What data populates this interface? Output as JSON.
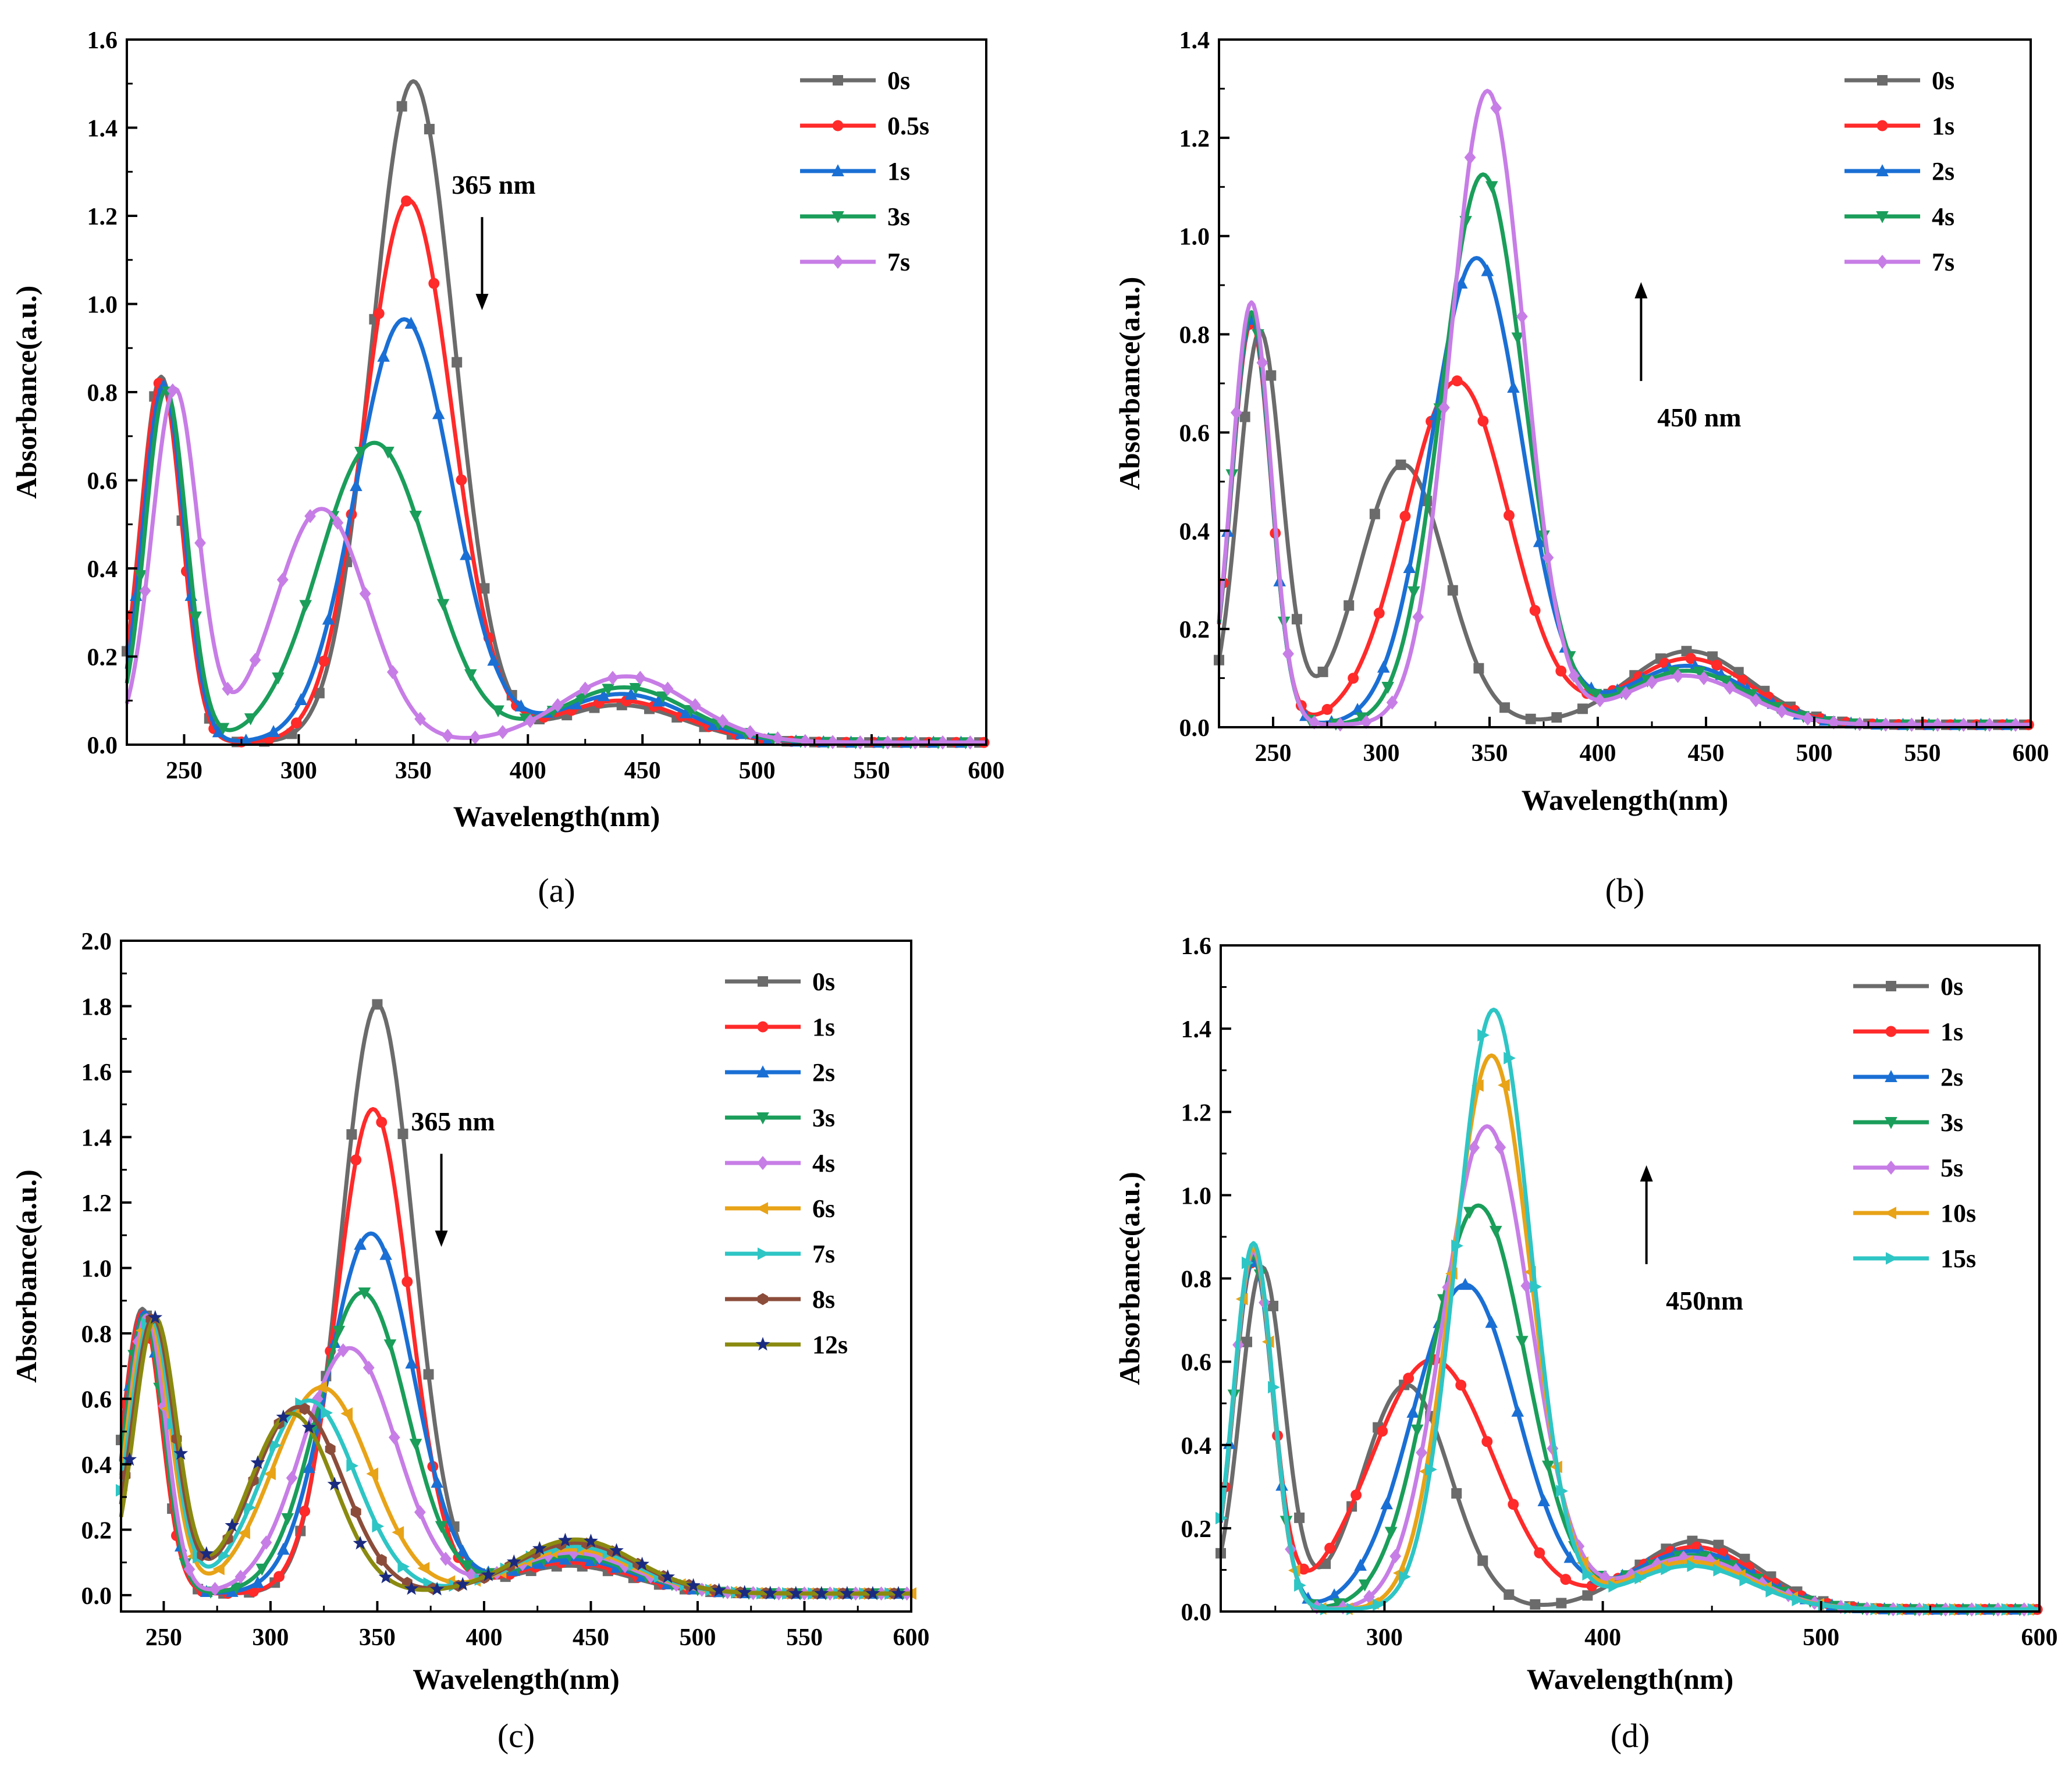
{
  "chart_data": [
    {
      "panel": "(a)",
      "type": "line",
      "xlabel": "Wavelength(nm)",
      "ylabel": "Absorbance(a.u.)",
      "xlim": [
        225,
        600
      ],
      "ylim": [
        0,
        1.6
      ],
      "xticks": [
        250,
        300,
        350,
        400,
        450,
        500,
        550,
        600
      ],
      "yticks": [
        0.0,
        0.2,
        0.4,
        0.6,
        0.8,
        1.0,
        1.2,
        1.4,
        1.6
      ],
      "ytick_labels": [
        "0.0",
        "0.2",
        "0.4",
        "0.6",
        "0.8",
        "1.0",
        "1.2",
        "1.4",
        "1.6"
      ],
      "annotation": {
        "text": "365 nm",
        "arrow": "down",
        "x": 380,
        "y": 1.25
      },
      "legend_position": "top-right",
      "series": [
        {
          "name": "0s",
          "color": "#6b6b6b",
          "marker": "square",
          "peaks": [
            [
              240,
              0.83,
              9
            ],
            [
              350,
              1.5,
              18
            ],
            [
              440,
              0.085,
              28
            ]
          ]
        },
        {
          "name": "0.5s",
          "color": "#ff2a2a",
          "marker": "circle",
          "peaks": [
            [
              240,
              0.82,
              9
            ],
            [
              348,
              1.23,
              19
            ],
            [
              440,
              0.095,
              28
            ]
          ]
        },
        {
          "name": "1s",
          "color": "#1a6fd4",
          "marker": "triangle-up",
          "peaks": [
            [
              241,
              0.81,
              9
            ],
            [
              346,
              0.96,
              21
            ],
            [
              441,
              0.11,
              28
            ]
          ]
        },
        {
          "name": "3s",
          "color": "#1a9e5a",
          "marker": "triangle-down",
          "peaks": [
            [
              242,
              0.8,
              9
            ],
            [
              333,
              0.68,
              24
            ],
            [
              442,
              0.125,
              28
            ]
          ]
        },
        {
          "name": "7s",
          "color": "#c77de6",
          "marker": "diamond",
          "peaks": [
            [
              246,
              0.8,
              10
            ],
            [
              310,
              0.53,
              20
            ],
            [
              443,
              0.15,
              28
            ]
          ]
        }
      ]
    },
    {
      "panel": "(b)",
      "type": "line",
      "xlabel": "Wavelength(nm)",
      "ylabel": "Absorbance(a.u.)",
      "xlim": [
        225,
        600
      ],
      "ylim": [
        0,
        1.4
      ],
      "xticks": [
        250,
        300,
        350,
        400,
        450,
        500,
        550,
        600
      ],
      "yticks": [
        0.0,
        0.2,
        0.4,
        0.6,
        0.8,
        1.0,
        1.2,
        1.4
      ],
      "ytick_labels": [
        "0.0",
        "0.2",
        "0.4",
        "0.6",
        "0.8",
        "1.0",
        "1.2",
        "1.4"
      ],
      "annotation": {
        "text": "450 nm",
        "arrow": "up",
        "x": 420,
        "y": 0.93
      },
      "legend_position": "top-right",
      "series": [
        {
          "name": "0s",
          "color": "#6b6b6b",
          "marker": "square",
          "peaks": [
            [
              244,
              0.8,
              10
            ],
            [
              310,
              0.53,
              20
            ],
            [
              442,
              0.15,
              28
            ]
          ]
        },
        {
          "name": "1s",
          "color": "#ff2a2a",
          "marker": "circle",
          "peaks": [
            [
              240,
              0.82,
              9
            ],
            [
              335,
              0.7,
              24
            ],
            [
              442,
              0.135,
              28
            ]
          ]
        },
        {
          "name": "2s",
          "color": "#1a6fd4",
          "marker": "triangle-up",
          "peaks": [
            [
              240,
              0.83,
              9
            ],
            [
              344,
              0.95,
              21
            ],
            [
              441,
              0.12,
              28
            ]
          ]
        },
        {
          "name": "4s",
          "color": "#1a9e5a",
          "marker": "triangle-down",
          "peaks": [
            [
              240,
              0.84,
              9
            ],
            [
              347,
              1.12,
              19
            ],
            [
              441,
              0.11,
              28
            ]
          ]
        },
        {
          "name": "7s",
          "color": "#c77de6",
          "marker": "diamond",
          "peaks": [
            [
              240,
              0.86,
              9
            ],
            [
              349,
              1.29,
              17
            ],
            [
              440,
              0.1,
              28
            ]
          ]
        }
      ]
    },
    {
      "panel": "(c)",
      "type": "line",
      "xlabel": "Wavelength(nm)",
      "ylabel": "Absorbance(a.u.)",
      "xlim": [
        230,
        600
      ],
      "ylim": [
        -0.05,
        2.0
      ],
      "xticks": [
        250,
        300,
        350,
        400,
        450,
        500,
        550,
        600
      ],
      "yticks": [
        0.0,
        0.2,
        0.4,
        0.6,
        0.8,
        1.0,
        1.2,
        1.4,
        1.6,
        1.8,
        2.0
      ],
      "ytick_labels": [
        "0.0",
        "0.2",
        "0.4",
        "0.6",
        "0.8",
        "1.0",
        "1.2",
        "1.4",
        "1.6",
        "1.8",
        "2.0"
      ],
      "annotation": {
        "text": "365 nm",
        "arrow": "down",
        "x": 380,
        "y": 1.42
      },
      "legend_position": "top-right",
      "series": [
        {
          "name": "0s",
          "color": "#6b6b6b",
          "marker": "square",
          "peaks": [
            [
              240,
              0.87,
              9
            ],
            [
              350,
              1.8,
              17
            ],
            [
              440,
              0.085,
              28
            ]
          ]
        },
        {
          "name": "1s",
          "color": "#ff2a2a",
          "marker": "circle",
          "peaks": [
            [
              240,
              0.86,
              9
            ],
            [
              348,
              1.48,
              17
            ],
            [
              440,
              0.095,
              28
            ]
          ]
        },
        {
          "name": "2s",
          "color": "#1a6fd4",
          "marker": "triangle-up",
          "peaks": [
            [
              241,
              0.86,
              9
            ],
            [
              347,
              1.1,
              20
            ],
            [
              441,
              0.105,
              28
            ]
          ]
        },
        {
          "name": "3s",
          "color": "#1a9e5a",
          "marker": "triangle-down",
          "peaks": [
            [
              241,
              0.85,
              9
            ],
            [
              343,
              0.92,
              21
            ],
            [
              441,
              0.115,
              28
            ]
          ]
        },
        {
          "name": "4s",
          "color": "#c77de6",
          "marker": "diamond",
          "peaks": [
            [
              242,
              0.85,
              9
            ],
            [
              337,
              0.75,
              22
            ],
            [
              441,
              0.125,
              28
            ]
          ]
        },
        {
          "name": "6s",
          "color": "#e8a317",
          "marker": "triangle-left",
          "peaks": [
            [
              243,
              0.84,
              10
            ],
            [
              324,
              0.63,
              23
            ],
            [
              442,
              0.135,
              28
            ]
          ]
        },
        {
          "name": "7s",
          "color": "#2ec5c5",
          "marker": "triangle-right",
          "peaks": [
            [
              244,
              0.84,
              10
            ],
            [
              318,
              0.59,
              22
            ],
            [
              442,
              0.145,
              28
            ]
          ]
        },
        {
          "name": "8s",
          "color": "#8b4d3a",
          "marker": "hexagon",
          "peaks": [
            [
              245,
              0.84,
              10
            ],
            [
              313,
              0.57,
              21
            ],
            [
              443,
              0.155,
              28
            ]
          ]
        },
        {
          "name": "12s",
          "color": "#8a8a10",
          "marker": "star",
          "peaks": [
            [
              246,
              0.84,
              10
            ],
            [
              310,
              0.55,
              20
            ],
            [
              443,
              0.165,
              28
            ]
          ]
        }
      ]
    },
    {
      "panel": "(d)",
      "type": "line",
      "xlabel": "Wavelength(nm)",
      "ylabel": "Absorbance(a.u.)",
      "xlim": [
        225,
        600
      ],
      "ylim": [
        0,
        1.6
      ],
      "xticks": [
        300,
        400,
        500,
        600
      ],
      "yticks": [
        0.0,
        0.2,
        0.4,
        0.6,
        0.8,
        1.0,
        1.2,
        1.4,
        1.6
      ],
      "ytick_labels": [
        "0.0",
        "0.2",
        "0.4",
        "0.6",
        "0.8",
        "1.0",
        "1.2",
        "1.4",
        "1.6"
      ],
      "annotation": {
        "text": "450nm",
        "arrow": "up",
        "x": 420,
        "y": 1.1
      },
      "legend_position": "top-right",
      "series": [
        {
          "name": "0s",
          "color": "#6b6b6b",
          "marker": "square",
          "peaks": [
            [
              244,
              0.82,
              10
            ],
            [
              310,
              0.54,
              20
            ],
            [
              443,
              0.165,
              28
            ]
          ]
        },
        {
          "name": "1s",
          "color": "#ff2a2a",
          "marker": "circle",
          "peaks": [
            [
              240,
              0.83,
              9
            ],
            [
              322,
              0.6,
              28
            ],
            [
              442,
              0.15,
              28
            ]
          ]
        },
        {
          "name": "2s",
          "color": "#1a6fd4",
          "marker": "triangle-up",
          "peaks": [
            [
              240,
              0.84,
              9
            ],
            [
              337,
              0.78,
              24
            ],
            [
              441,
              0.14,
              28
            ]
          ]
        },
        {
          "name": "3s",
          "color": "#1a9e5a",
          "marker": "triangle-down",
          "peaks": [
            [
              240,
              0.85,
              9
            ],
            [
              343,
              0.97,
              22
            ],
            [
              441,
              0.13,
              28
            ]
          ]
        },
        {
          "name": "5s",
          "color": "#c77de6",
          "marker": "diamond",
          "peaks": [
            [
              240,
              0.86,
              9
            ],
            [
              347,
              1.16,
              20
            ],
            [
              440,
              0.125,
              28
            ]
          ]
        },
        {
          "name": "10s",
          "color": "#e8a317",
          "marker": "triangle-left",
          "peaks": [
            [
              240,
              0.87,
              9
            ],
            [
              349,
              1.33,
              18
            ],
            [
              440,
              0.115,
              28
            ]
          ]
        },
        {
          "name": "15s",
          "color": "#2ec5c5",
          "marker": "triangle-right",
          "peaks": [
            [
              240,
              0.88,
              9
            ],
            [
              350,
              1.44,
              17
            ],
            [
              440,
              0.105,
              28
            ]
          ]
        }
      ]
    }
  ]
}
